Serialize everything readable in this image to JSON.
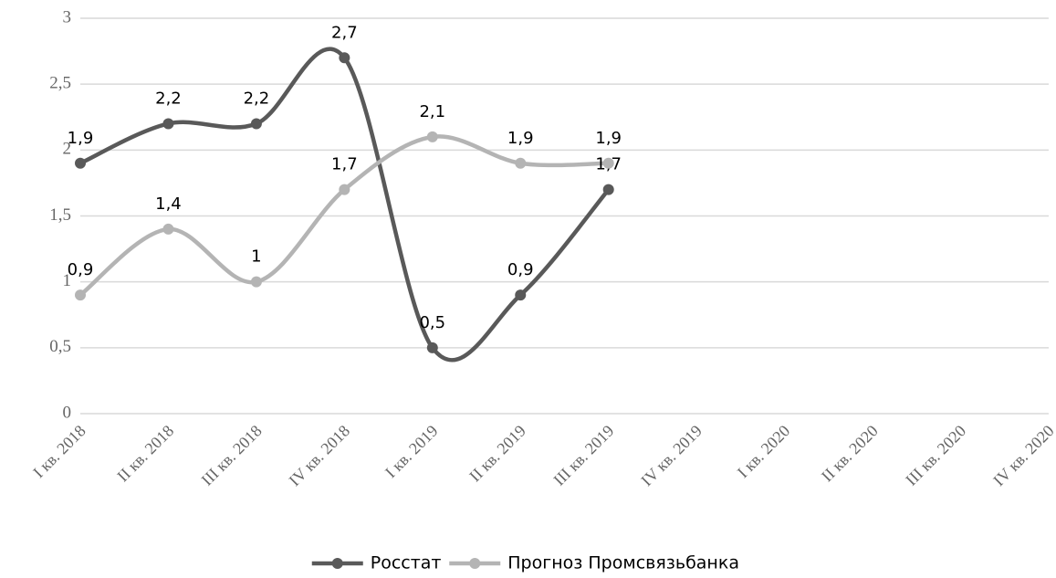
{
  "chart_data": {
    "type": "line",
    "categories": [
      "I кв. 2018",
      "II кв. 2018",
      "III кв. 2018",
      "IV кв. 2018",
      "I кв. 2019",
      "II кв. 2019",
      "III кв. 2019",
      "IV кв. 2019",
      "I кв. 2020",
      "II кв. 2020",
      "III кв. 2020",
      "IV кв. 2020"
    ],
    "series": [
      {
        "name": "Росстат",
        "color": "#595959",
        "values": [
          1.9,
          2.2,
          2.2,
          2.7,
          0.5,
          0.9,
          1.7,
          null,
          null,
          null,
          null,
          null
        ],
        "value_labels": [
          "1,9",
          "2,2",
          "2,2",
          "2,7",
          "0,5",
          "0,9",
          "1,7",
          null,
          null,
          null,
          null,
          null
        ]
      },
      {
        "name": "Прогноз Промсвязьбанка",
        "color": "#b4b4b4",
        "values": [
          0.9,
          1.4,
          1.0,
          1.7,
          2.1,
          1.9,
          1.9,
          null,
          null,
          null,
          null,
          null
        ],
        "value_labels": [
          "0,9",
          "1,4",
          "1",
          "1,7",
          "2,1",
          "1,9",
          "1,9",
          null,
          null,
          null,
          null,
          null
        ]
      }
    ],
    "ylim": [
      0,
      3
    ],
    "yticks": [
      0,
      {
        "value": 0.5,
        "label": "0,5"
      },
      1,
      {
        "value": 1.5,
        "label": "1,5"
      },
      2,
      {
        "value": 2.5,
        "label": "2,5"
      },
      3
    ],
    "grid": true,
    "smooth": true,
    "legend": "bottom"
  }
}
